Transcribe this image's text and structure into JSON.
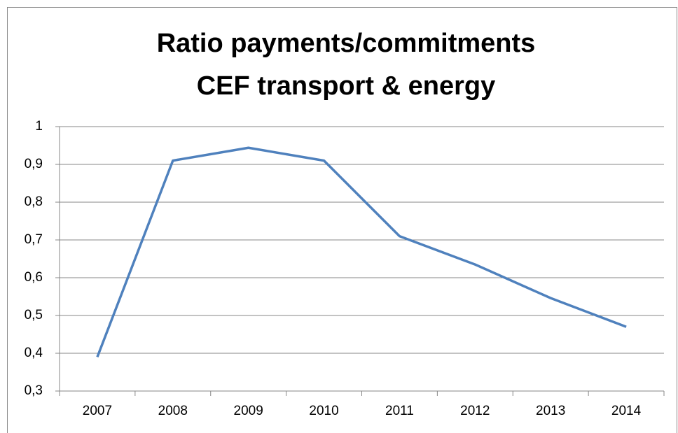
{
  "chart_data": {
    "type": "line",
    "title": [
      "Ratio payments/commitments",
      "CEF transport & energy"
    ],
    "categories": [
      "2007",
      "2008",
      "2009",
      "2010",
      "2011",
      "2012",
      "2013",
      "2014"
    ],
    "series": [
      {
        "color": "#4f81bd",
        "values": [
          0.39,
          0.91,
          0.944,
          0.91,
          0.71,
          0.635,
          0.546,
          0.47
        ]
      }
    ],
    "ylim": [
      0.3,
      1
    ],
    "yticks": [
      {
        "value": 0.3,
        "label": "0,3"
      },
      {
        "value": 0.4,
        "label": "0,4"
      },
      {
        "value": 0.5,
        "label": "0,5"
      },
      {
        "value": 0.6,
        "label": "0,6"
      },
      {
        "value": 0.7,
        "label": "0,7"
      },
      {
        "value": 0.8,
        "label": "0,8"
      },
      {
        "value": 0.9,
        "label": "0,9"
      },
      1
    ],
    "grid": true
  }
}
